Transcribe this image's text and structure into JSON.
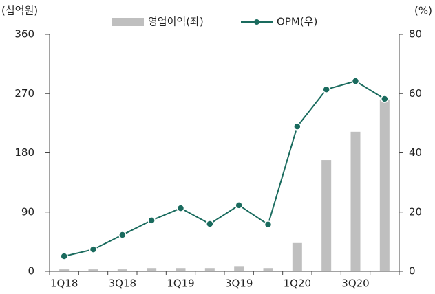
{
  "chart_data": {
    "type": "bar_line",
    "y_label": "(십억원)",
    "y2_label": "(%)",
    "categories": [
      "1Q18",
      null,
      "3Q18",
      null,
      "1Q19",
      null,
      "3Q19",
      null,
      "1Q20",
      null,
      "3Q20",
      null
    ],
    "series": [
      {
        "name": "영업이익(좌)",
        "type": "bar",
        "color": "#bfbfbf",
        "axis": "y",
        "values": [
          3,
          3,
          3,
          5,
          5,
          5,
          8,
          5,
          43,
          169,
          212,
          261
        ]
      },
      {
        "name": "OPM(우)",
        "type": "line",
        "color": "#1a6b5e",
        "axis": "y2",
        "values": [
          5.1,
          7.4,
          12.3,
          17.2,
          21.3,
          16.0,
          22.3,
          15.8,
          48.9,
          61.4,
          64.2,
          58.2
        ]
      }
    ],
    "ylim": [
      0,
      360
    ],
    "yticks": [
      0,
      90,
      180,
      270,
      360
    ],
    "y2lim": [
      0,
      80
    ],
    "y2ticks": [
      0,
      20,
      40,
      60,
      80
    ],
    "grid": false
  }
}
